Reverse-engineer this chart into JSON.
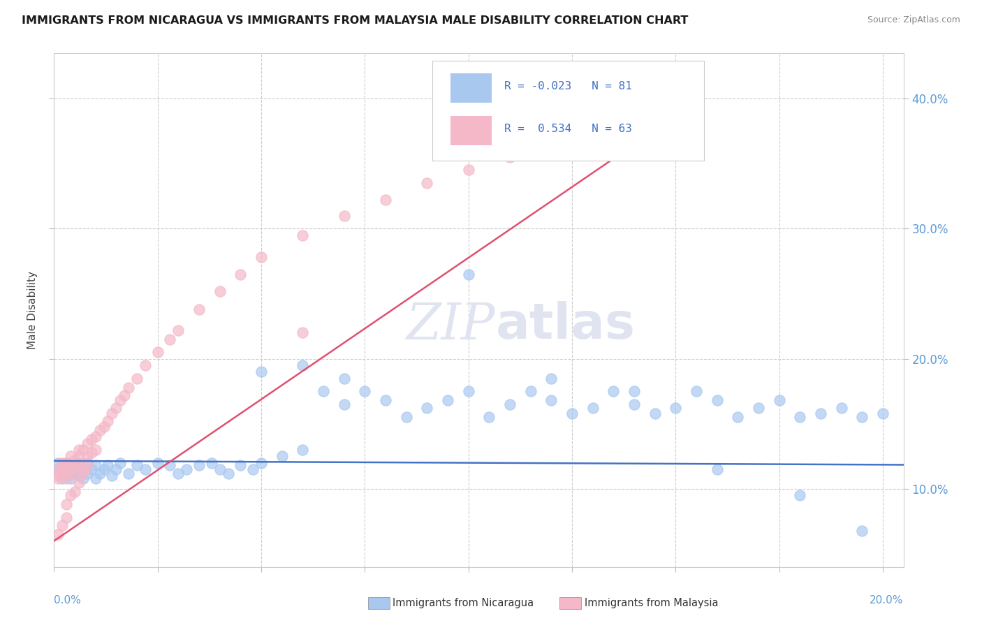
{
  "title": "IMMIGRANTS FROM NICARAGUA VS IMMIGRANTS FROM MALAYSIA MALE DISABILITY CORRELATION CHART",
  "source": "Source: ZipAtlas.com",
  "ylabel": "Male Disability",
  "xlim": [
    0.0,
    0.205
  ],
  "ylim": [
    0.04,
    0.435
  ],
  "y_ticks": [
    0.1,
    0.2,
    0.3,
    0.4
  ],
  "y_tick_labels": [
    "10.0%",
    "20.0%",
    "30.0%",
    "40.0%"
  ],
  "color_nicaragua": "#a8c8f0",
  "color_malaysia": "#f4b8c8",
  "color_nicaragua_line": "#4472c4",
  "color_malaysia_line": "#e05070",
  "watermark_color": "#e0e4f0",
  "background": "#ffffff",
  "grid_color": "#cccccc",
  "nicaragua_x": [
    0.001,
    0.001,
    0.002,
    0.002,
    0.002,
    0.003,
    0.003,
    0.003,
    0.004,
    0.004,
    0.004,
    0.005,
    0.005,
    0.006,
    0.006,
    0.007,
    0.007,
    0.008,
    0.008,
    0.009,
    0.01,
    0.01,
    0.011,
    0.012,
    0.013,
    0.014,
    0.015,
    0.016,
    0.018,
    0.02,
    0.022,
    0.025,
    0.028,
    0.03,
    0.032,
    0.035,
    0.038,
    0.04,
    0.042,
    0.045,
    0.048,
    0.05,
    0.055,
    0.06,
    0.065,
    0.07,
    0.075,
    0.08,
    0.085,
    0.09,
    0.095,
    0.1,
    0.105,
    0.11,
    0.115,
    0.12,
    0.125,
    0.13,
    0.135,
    0.14,
    0.145,
    0.15,
    0.155,
    0.16,
    0.165,
    0.17,
    0.175,
    0.18,
    0.185,
    0.19,
    0.195,
    0.2,
    0.05,
    0.06,
    0.07,
    0.1,
    0.12,
    0.14,
    0.16,
    0.18,
    0.195
  ],
  "nicaragua_y": [
    0.115,
    0.12,
    0.112,
    0.118,
    0.108,
    0.115,
    0.12,
    0.11,
    0.112,
    0.118,
    0.108,
    0.115,
    0.112,
    0.118,
    0.11,
    0.115,
    0.108,
    0.12,
    0.112,
    0.115,
    0.118,
    0.108,
    0.112,
    0.115,
    0.118,
    0.11,
    0.115,
    0.12,
    0.112,
    0.118,
    0.115,
    0.12,
    0.118,
    0.112,
    0.115,
    0.118,
    0.12,
    0.115,
    0.112,
    0.118,
    0.115,
    0.12,
    0.125,
    0.13,
    0.175,
    0.165,
    0.175,
    0.168,
    0.155,
    0.162,
    0.168,
    0.175,
    0.155,
    0.165,
    0.175,
    0.168,
    0.158,
    0.162,
    0.175,
    0.165,
    0.158,
    0.162,
    0.175,
    0.168,
    0.155,
    0.162,
    0.168,
    0.155,
    0.158,
    0.162,
    0.155,
    0.158,
    0.19,
    0.195,
    0.185,
    0.265,
    0.185,
    0.175,
    0.115,
    0.095,
    0.068
  ],
  "malaysia_x": [
    0.001,
    0.001,
    0.001,
    0.002,
    0.002,
    0.002,
    0.002,
    0.003,
    0.003,
    0.003,
    0.003,
    0.004,
    0.004,
    0.004,
    0.005,
    0.005,
    0.005,
    0.006,
    0.006,
    0.006,
    0.007,
    0.007,
    0.008,
    0.008,
    0.009,
    0.009,
    0.01,
    0.01,
    0.011,
    0.012,
    0.013,
    0.014,
    0.015,
    0.016,
    0.017,
    0.018,
    0.02,
    0.022,
    0.025,
    0.028,
    0.03,
    0.035,
    0.04,
    0.045,
    0.05,
    0.06,
    0.07,
    0.08,
    0.09,
    0.1,
    0.11,
    0.12,
    0.13,
    0.001,
    0.002,
    0.003,
    0.003,
    0.004,
    0.005,
    0.006,
    0.007,
    0.008,
    0.06
  ],
  "malaysia_y": [
    0.11,
    0.115,
    0.108,
    0.115,
    0.12,
    0.112,
    0.118,
    0.118,
    0.112,
    0.12,
    0.108,
    0.115,
    0.125,
    0.118,
    0.122,
    0.112,
    0.118,
    0.125,
    0.13,
    0.12,
    0.13,
    0.115,
    0.135,
    0.125,
    0.138,
    0.128,
    0.14,
    0.13,
    0.145,
    0.148,
    0.152,
    0.158,
    0.162,
    0.168,
    0.172,
    0.178,
    0.185,
    0.195,
    0.205,
    0.215,
    0.222,
    0.238,
    0.252,
    0.265,
    0.278,
    0.295,
    0.31,
    0.322,
    0.335,
    0.345,
    0.355,
    0.365,
    0.375,
    0.065,
    0.072,
    0.078,
    0.088,
    0.095,
    0.098,
    0.105,
    0.112,
    0.118,
    0.22
  ],
  "nic_line_x": [
    0.0,
    0.205
  ],
  "nic_line_y": [
    0.1215,
    0.1185
  ],
  "mal_line_x": [
    0.0,
    0.148
  ],
  "mal_line_y": [
    0.06,
    0.382
  ]
}
